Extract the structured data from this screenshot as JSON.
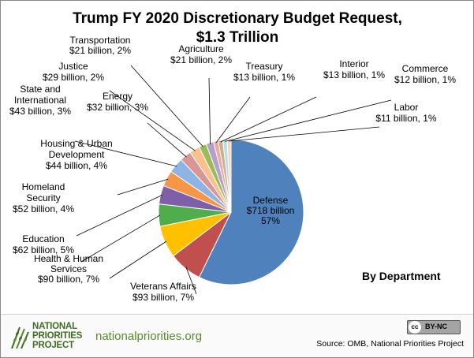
{
  "chart_data": {
    "type": "pie",
    "title_lines": [
      "Trump FY 2020 Discretionary  Budget Request,",
      "$1.3 Trillion"
    ],
    "subtitle": "By Department",
    "slices": [
      {
        "name": "Defense",
        "value": 718,
        "label_lines": [
          "Defense",
          "$718 billion",
          "57%"
        ],
        "color": "#4f81bd"
      },
      {
        "name": "Veterans Affairs",
        "value": 93,
        "label_lines": [
          "Veterans Affairs",
          "$93 billion, 7%"
        ],
        "color": "#c0504d"
      },
      {
        "name": "Health & Human Services",
        "value": 90,
        "label_lines": [
          "Health & Human",
          "Services",
          "$90 billion, 7%"
        ],
        "color": "#ffc000"
      },
      {
        "name": "Education",
        "value": 62,
        "label_lines": [
          "Education",
          "$62 billion, 5%"
        ],
        "color": "#4fad4b"
      },
      {
        "name": "Homeland Security",
        "value": 52,
        "label_lines": [
          "Homeland",
          "Security",
          "$52 billion, 4%"
        ],
        "color": "#7f5fa8"
      },
      {
        "name": "Housing & Urban Development",
        "value": 44,
        "label_lines": [
          "Housing & Urban",
          "Development",
          "$44 billion, 4%"
        ],
        "color": "#f79646"
      },
      {
        "name": "State and International",
        "value": 43,
        "label_lines": [
          "State and",
          "International",
          "$43 billion, 3%"
        ],
        "color": "#8eb4e3"
      },
      {
        "name": "Energy",
        "value": 32,
        "label_lines": [
          "Energy",
          "$32 billion, 3%"
        ],
        "color": "#d99694"
      },
      {
        "name": "Justice",
        "value": 29,
        "label_lines": [
          "Justice",
          "$29 billion, 2%"
        ],
        "color": "#fac090"
      },
      {
        "name": "Transportation",
        "value": 21,
        "label_lines": [
          "Transportation",
          "$21 billion, 2%"
        ],
        "color": "#9bbb59"
      },
      {
        "name": "Agriculture",
        "value": 21,
        "label_lines": [
          "Agriculture",
          "$21 billion, 2%"
        ],
        "color": "#b3a2c7"
      },
      {
        "name": "Treasury",
        "value": 13,
        "label_lines": [
          "Treasury",
          "$13 billion, 1%"
        ],
        "color": "#f2a6a4"
      },
      {
        "name": "Interior",
        "value": 13,
        "label_lines": [
          "Interior",
          "$13 billion, 1%"
        ],
        "color": "#c9b18a"
      },
      {
        "name": "Commerce",
        "value": 12,
        "label_lines": [
          "Commerce",
          "$12 billion, 1%"
        ],
        "color": "#b7dee8"
      },
      {
        "name": "Labor",
        "value": 11,
        "label_lines": [
          "Labor",
          "$11 billion, 1%"
        ],
        "color": "#fcd5b4"
      }
    ]
  },
  "footer": {
    "logo_lines": [
      "NATIONAL",
      "PRIORITIES",
      "PROJECT"
    ],
    "website": "nationalpriorities.org",
    "license_cc": "cc",
    "license_text": "BY-NC",
    "source": "Source: OMB, National Priorities Project"
  },
  "colors": {
    "brand_green": "#3e6e1f",
    "website_green": "#5a8a2a"
  }
}
